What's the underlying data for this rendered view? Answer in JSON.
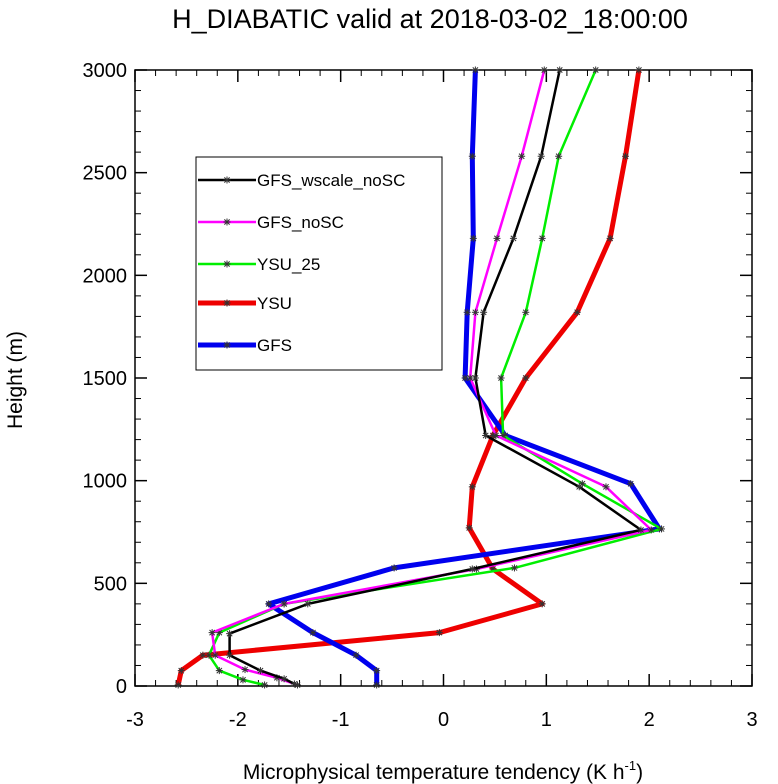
{
  "chart_data": {
    "type": "line",
    "title": "H_DIABATIC valid at 2018-03-02_18:00:00",
    "xlabel": "Microphysical temperature tendency (K h",
    "xlabel_sup": "-1",
    "xlabel_tail": ")",
    "ylabel": "Height (m)",
    "xlim": [
      -3,
      3
    ],
    "ylim": [
      0,
      3000
    ],
    "xticks": [
      "-3",
      "-2",
      "-1",
      "0",
      "1",
      "2",
      "3"
    ],
    "yticks": [
      "0",
      "500",
      "1000",
      "1500",
      "2000",
      "2500",
      "3000"
    ],
    "grid": false,
    "legend_placement": "upper-left-inside",
    "series": [
      {
        "name": "GFS_wscale_noSC",
        "color": "#000000",
        "width": "thin",
        "points": [
          [
            -1.45,
            10
          ],
          [
            -1.55,
            35
          ],
          [
            -1.78,
            75
          ],
          [
            -2.08,
            150
          ],
          [
            -2.08,
            255
          ],
          [
            -1.32,
            400
          ],
          [
            0.28,
            570
          ],
          [
            1.92,
            760
          ],
          [
            1.32,
            970
          ],
          [
            0.41,
            1220
          ],
          [
            0.31,
            1500
          ],
          [
            0.39,
            1820
          ],
          [
            0.68,
            2180
          ],
          [
            0.95,
            2580
          ],
          [
            1.13,
            3000
          ]
        ]
      },
      {
        "name": "GFS_noSC",
        "color": "#ff00ff",
        "width": "thin",
        "points": [
          [
            -1.42,
            5
          ],
          [
            -1.62,
            40
          ],
          [
            -1.93,
            80
          ],
          [
            -2.22,
            150
          ],
          [
            -2.25,
            260
          ],
          [
            -1.55,
            400
          ],
          [
            0.32,
            570
          ],
          [
            2.02,
            760
          ],
          [
            1.58,
            970
          ],
          [
            0.51,
            1220
          ],
          [
            0.26,
            1500
          ],
          [
            0.31,
            1820
          ],
          [
            0.52,
            2180
          ],
          [
            0.76,
            2580
          ],
          [
            0.98,
            3000
          ]
        ]
      },
      {
        "name": "YSU_25",
        "color": "#00ee00",
        "width": "thin",
        "points": [
          [
            -1.74,
            5
          ],
          [
            -1.95,
            30
          ],
          [
            -2.18,
            75
          ],
          [
            -2.28,
            150
          ],
          [
            -2.18,
            260
          ],
          [
            -1.55,
            400
          ],
          [
            0.69,
            575
          ],
          [
            2.12,
            765
          ],
          [
            1.35,
            985
          ],
          [
            0.58,
            1220
          ],
          [
            0.56,
            1500
          ],
          [
            0.8,
            1820
          ],
          [
            0.96,
            2180
          ],
          [
            1.12,
            2580
          ],
          [
            1.48,
            3000
          ]
        ]
      },
      {
        "name": "YSU",
        "color": "#ee0000",
        "width": "thick",
        "points": [
          [
            -2.58,
            5
          ],
          [
            -2.55,
            75
          ],
          [
            -2.34,
            150
          ],
          [
            -0.04,
            260
          ],
          [
            0.96,
            400
          ],
          [
            0.48,
            570
          ],
          [
            0.25,
            770
          ],
          [
            0.28,
            970
          ],
          [
            0.48,
            1220
          ],
          [
            0.8,
            1500
          ],
          [
            1.3,
            1820
          ],
          [
            1.62,
            2180
          ],
          [
            1.77,
            2580
          ],
          [
            1.9,
            3000
          ]
        ]
      },
      {
        "name": "GFS",
        "color": "#0000ee",
        "width": "thick",
        "points": [
          [
            -0.65,
            5
          ],
          [
            -0.65,
            75
          ],
          [
            -0.85,
            150
          ],
          [
            -1.27,
            260
          ],
          [
            -1.7,
            400
          ],
          [
            -0.48,
            575
          ],
          [
            2.1,
            765
          ],
          [
            1.82,
            985
          ],
          [
            0.6,
            1220
          ],
          [
            0.21,
            1500
          ],
          [
            0.23,
            1820
          ],
          [
            0.29,
            2180
          ],
          [
            0.28,
            2580
          ],
          [
            0.31,
            3000
          ]
        ]
      }
    ]
  }
}
